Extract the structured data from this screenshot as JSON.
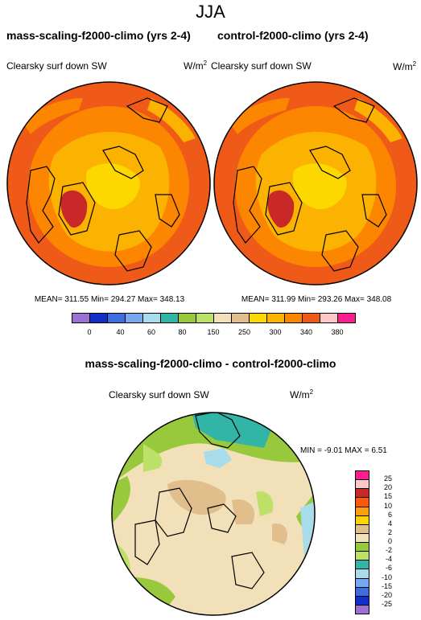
{
  "page": {
    "season_title": "JJA"
  },
  "panels": [
    {
      "title": "mass-scaling-f2000-climo (yrs 2-4)",
      "variable": "Clearsky surf down SW",
      "units_base": "W/m",
      "units_exp": "2",
      "stats": "MEAN= 311.55  Min= 294.27  Max= 348.13"
    },
    {
      "title": "control-f2000-climo (yrs 2-4)",
      "variable": "Clearsky surf down SW",
      "units_base": "W/m",
      "units_exp": "2",
      "stats": "MEAN= 311.99  Min= 293.26  Max= 348.08"
    }
  ],
  "top_colorbar": {
    "colors": [
      "#9a72d6",
      "#1030c8",
      "#3c6ee0",
      "#78a8ee",
      "#a8dcea",
      "#32b4a6",
      "#98c83c",
      "#bce068",
      "#f2e0b8",
      "#e0bf8c",
      "#fcd800",
      "#fcb200",
      "#fc8600",
      "#f05a18",
      "#fcc8c8",
      "#fc1e8e"
    ],
    "labels": [
      "0",
      "40",
      "60",
      "80",
      "150",
      "250",
      "300",
      "340",
      "380"
    ]
  },
  "diff_panel": {
    "title": "mass-scaling-f2000-climo - control-f2000-climo",
    "variable": "Clearsky surf down SW",
    "units_base": "W/m",
    "units_exp": "2",
    "stats": "MIN =  -9.01 MAX =   6.51"
  },
  "diff_colorbar": {
    "colors": [
      "#fc1e8e",
      "#fcc8c8",
      "#c82828",
      "#fc5a0a",
      "#fca00a",
      "#fcd400",
      "#e0bf8c",
      "#f2e0b8",
      "#98c83c",
      "#bce068",
      "#32b4a6",
      "#a8dcea",
      "#78a8ee",
      "#3c6ee0",
      "#1030c8",
      "#9a72d6"
    ],
    "labels": [
      "25",
      "20",
      "15",
      "10",
      "6",
      "4",
      "2",
      "0",
      "-2",
      "-4",
      "-6",
      "-10",
      "-15",
      "-20",
      "-25"
    ]
  }
}
